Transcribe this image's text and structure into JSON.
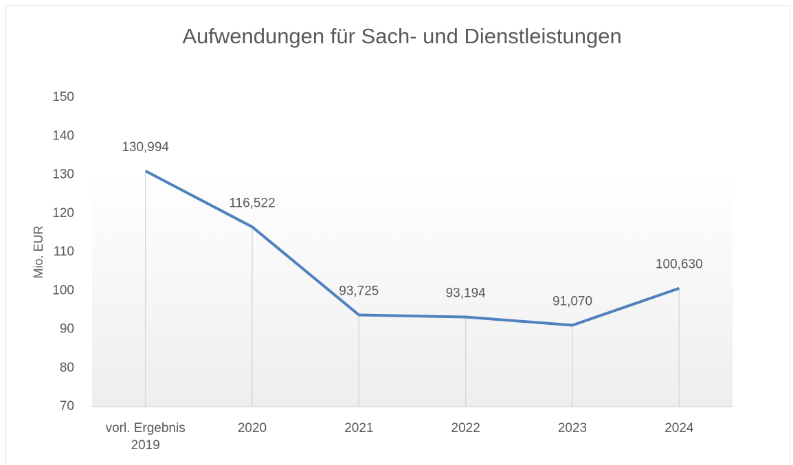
{
  "chart_data": {
    "type": "line",
    "title": "Aufwendungen für Sach- und Dienstleistungen",
    "y_label": "Mio. EUR",
    "categories": [
      "vorl. Ergebnis 2019",
      "2020",
      "2021",
      "2022",
      "2023",
      "2024"
    ],
    "series": [
      {
        "name": "Aufwendungen für Sach- und Dienstleistungen",
        "color": "#4f81bd",
        "values": [
          130.994,
          116.522,
          93.725,
          93.194,
          91.07,
          100.63
        ],
        "value_labels": [
          "130,994",
          "116,522",
          "93,725",
          "93,194",
          "91,070",
          "100,630"
        ]
      }
    ],
    "ylim": [
      70,
      150
    ],
    "yticks": [
      70,
      80,
      90,
      100,
      110,
      120,
      130,
      140,
      150
    ],
    "grid": false,
    "drop_lines": true
  }
}
